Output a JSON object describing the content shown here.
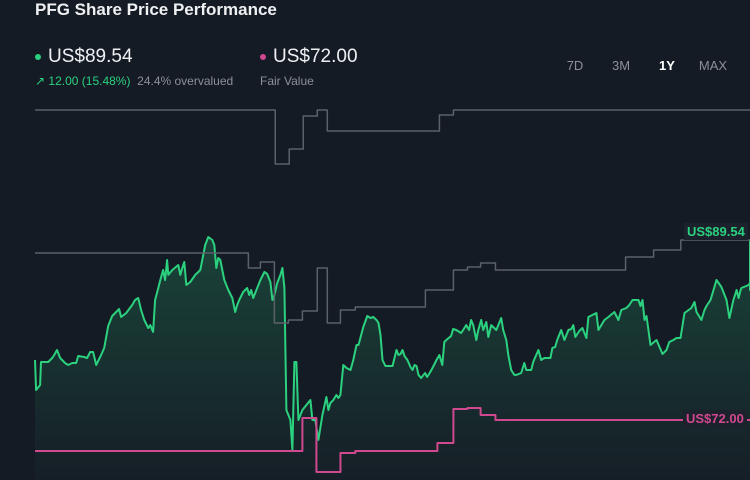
{
  "header": {
    "title": "PFG Share Price Performance"
  },
  "price": {
    "value": "US$89.54",
    "change": "12.00 (15.48%)",
    "valuation": "24.4% overvalued",
    "color": "#2bd17e",
    "change_icon": "arrow-up-right-icon"
  },
  "fair_value": {
    "value": "US$72.00",
    "label": "Fair Value",
    "color": "#d0488f"
  },
  "tabs": [
    {
      "label": "7D"
    },
    {
      "label": "3M"
    },
    {
      "label": "1Y",
      "active": true
    },
    {
      "label": "MAX"
    }
  ],
  "chart_data": {
    "type": "line",
    "title": "",
    "xlabel": "",
    "ylabel": "",
    "grid": false,
    "end_labels": {
      "price": "US$89.54",
      "fair_value": "US$72.00"
    },
    "series": [
      {
        "role": "price",
        "color": "#2bd17e",
        "points": [
          [
            0,
            77.86
          ],
          [
            0.4,
            74.93
          ],
          [
            1.8,
            75.42
          ],
          [
            2.1,
            77.66
          ],
          [
            4.6,
            77.66
          ],
          [
            6.0,
            78.05
          ],
          [
            6.7,
            78.34
          ],
          [
            7.7,
            78.83
          ],
          [
            8.8,
            78.05
          ],
          [
            10.5,
            77.56
          ],
          [
            11.6,
            77.37
          ],
          [
            13.0,
            77.56
          ],
          [
            14.4,
            77.56
          ],
          [
            15.1,
            78.25
          ],
          [
            17.2,
            78.15
          ],
          [
            18.2,
            78.05
          ],
          [
            19.3,
            78.64
          ],
          [
            20.3,
            78.64
          ],
          [
            21.4,
            77.37
          ],
          [
            23.1,
            78.34
          ],
          [
            24.2,
            79.03
          ],
          [
            25.6,
            81.17
          ],
          [
            27.0,
            82.14
          ],
          [
            29.4,
            82.82
          ],
          [
            30.1,
            82.04
          ],
          [
            31.9,
            82.43
          ],
          [
            34.0,
            83.21
          ],
          [
            35.0,
            83.7
          ],
          [
            36.1,
            83.89
          ],
          [
            37.1,
            82.73
          ],
          [
            38.2,
            81.75
          ],
          [
            39.6,
            80.97
          ],
          [
            40.3,
            81.26
          ],
          [
            41.3,
            80.58
          ],
          [
            42.0,
            83.7
          ],
          [
            43.1,
            84.87
          ],
          [
            43.8,
            85.65
          ],
          [
            44.8,
            86.62
          ],
          [
            45.5,
            85.65
          ],
          [
            46.2,
            87.6
          ],
          [
            46.6,
            86.14
          ],
          [
            48.0,
            86.62
          ],
          [
            50.1,
            87.11
          ],
          [
            50.8,
            86.14
          ],
          [
            51.5,
            86.82
          ],
          [
            52.2,
            87.4
          ],
          [
            52.9,
            85.16
          ],
          [
            54.3,
            85.45
          ],
          [
            56.0,
            86.14
          ],
          [
            57.1,
            86.43
          ],
          [
            57.8,
            86.62
          ],
          [
            59.5,
            89.06
          ],
          [
            60.6,
            89.84
          ],
          [
            62.0,
            89.54
          ],
          [
            62.7,
            89.06
          ],
          [
            63.4,
            86.82
          ],
          [
            64.1,
            87.79
          ],
          [
            64.8,
            87.6
          ],
          [
            65.5,
            86.62
          ],
          [
            66.2,
            85.65
          ],
          [
            67.6,
            84.67
          ],
          [
            69.0,
            83.89
          ],
          [
            70.0,
            82.53
          ],
          [
            70.7,
            83.21
          ],
          [
            71.4,
            83.7
          ],
          [
            72.8,
            84.48
          ],
          [
            74.2,
            84.87
          ],
          [
            74.9,
            84.19
          ],
          [
            75.6,
            84.67
          ],
          [
            76.3,
            83.89
          ],
          [
            77.4,
            84.67
          ],
          [
            78.8,
            85.65
          ],
          [
            80.2,
            86.43
          ],
          [
            81.2,
            86.23
          ],
          [
            82.3,
            85.45
          ],
          [
            83.0,
            83.7
          ],
          [
            83.7,
            84.19
          ],
          [
            84.7,
            85.36
          ],
          [
            85.8,
            86.14
          ],
          [
            86.5,
            86.82
          ],
          [
            87.2,
            84.87
          ],
          [
            87.9,
            72.99
          ],
          [
            89.3,
            72.01
          ],
          [
            90.0,
            69.09
          ],
          [
            90.7,
            77.66
          ],
          [
            91.4,
            77.66
          ],
          [
            92.1,
            72.01
          ],
          [
            93.5,
            72.99
          ],
          [
            94.9,
            73.47
          ],
          [
            96.3,
            73.96
          ],
          [
            97.0,
            72.01
          ],
          [
            98.0,
            72.01
          ],
          [
            99.1,
            70.07
          ],
          [
            100.5,
            72.5
          ],
          [
            101.9,
            74.25
          ],
          [
            102.6,
            72.99
          ],
          [
            103.3,
            73.67
          ],
          [
            104.3,
            73.96
          ],
          [
            105.4,
            74.45
          ],
          [
            106.1,
            74.15
          ],
          [
            106.8,
            74.45
          ],
          [
            107.8,
            77.37
          ],
          [
            108.9,
            77.08
          ],
          [
            110.3,
            76.88
          ],
          [
            111.3,
            77.86
          ],
          [
            112.4,
            79.32
          ],
          [
            113.1,
            79.32
          ],
          [
            114.8,
            81.07
          ],
          [
            116.2,
            82.14
          ],
          [
            117.3,
            81.95
          ],
          [
            118.3,
            82.04
          ],
          [
            119.4,
            81.75
          ],
          [
            120.1,
            81.46
          ],
          [
            120.8,
            80.29
          ],
          [
            121.5,
            77.86
          ],
          [
            122.5,
            77.27
          ],
          [
            125.0,
            77.27
          ],
          [
            126.4,
            78.83
          ],
          [
            127.1,
            78.34
          ],
          [
            127.8,
            78.44
          ],
          [
            128.5,
            78.83
          ],
          [
            129.2,
            78.25
          ],
          [
            130.2,
            77.86
          ],
          [
            131.3,
            77.17
          ],
          [
            132.0,
            76.88
          ],
          [
            132.7,
            77.37
          ],
          [
            133.4,
            77.27
          ],
          [
            134.1,
            76.4
          ],
          [
            135.0,
            76.1
          ],
          [
            136.4,
            76.59
          ],
          [
            137.1,
            76.2
          ],
          [
            137.8,
            76.49
          ],
          [
            139.0,
            77.08
          ],
          [
            140.4,
            77.86
          ],
          [
            141.4,
            78.34
          ],
          [
            142.4,
            77.37
          ],
          [
            143.1,
            79.61
          ],
          [
            143.8,
            79.8
          ],
          [
            145.5,
            80.19
          ],
          [
            146.2,
            80.88
          ],
          [
            147.3,
            80.78
          ],
          [
            149.0,
            80.49
          ],
          [
            150.8,
            81.26
          ],
          [
            151.8,
            80.78
          ],
          [
            152.5,
            81.75
          ],
          [
            153.2,
            81.26
          ],
          [
            154.3,
            79.8
          ],
          [
            155.0,
            80.78
          ],
          [
            156.0,
            81.75
          ],
          [
            156.7,
            80.78
          ],
          [
            157.8,
            81.56
          ],
          [
            158.5,
            80.1
          ],
          [
            159.5,
            81.26
          ],
          [
            161.3,
            80.78
          ],
          [
            163.0,
            81.95
          ],
          [
            163.7,
            80.78
          ],
          [
            164.8,
            79.8
          ],
          [
            165.5,
            78.34
          ],
          [
            166.5,
            76.88
          ],
          [
            167.6,
            76.4
          ],
          [
            168.3,
            76.4
          ],
          [
            170.0,
            76.59
          ],
          [
            171.1,
            77.56
          ],
          [
            171.8,
            76.88
          ],
          [
            173.5,
            76.88
          ],
          [
            174.2,
            77.66
          ],
          [
            176.0,
            78.83
          ],
          [
            177.0,
            77.86
          ],
          [
            178.1,
            78.05
          ],
          [
            180.2,
            78.05
          ],
          [
            180.9,
            79.03
          ],
          [
            181.9,
            79.12
          ],
          [
            182.6,
            79.8
          ],
          [
            184.0,
            80.78
          ],
          [
            185.1,
            79.8
          ],
          [
            186.5,
            80.78
          ],
          [
            187.5,
            80.88
          ],
          [
            188.2,
            81.26
          ],
          [
            188.9,
            80.1
          ],
          [
            190.3,
            80.68
          ],
          [
            191.4,
            80.97
          ],
          [
            192.8,
            80.0
          ],
          [
            193.5,
            82.04
          ],
          [
            196.3,
            82.43
          ],
          [
            197.0,
            80.78
          ],
          [
            199.1,
            81.75
          ],
          [
            200.5,
            82.04
          ],
          [
            202.6,
            82.53
          ],
          [
            204.0,
            81.75
          ],
          [
            205.0,
            82.73
          ],
          [
            206.8,
            82.92
          ],
          [
            207.8,
            83.21
          ],
          [
            208.9,
            83.7
          ],
          [
            211.0,
            83.7
          ],
          [
            211.7,
            83.12
          ],
          [
            212.4,
            83.7
          ],
          [
            213.1,
            81.75
          ],
          [
            213.8,
            82.14
          ],
          [
            215.2,
            79.32
          ],
          [
            217.3,
            79.8
          ],
          [
            219.4,
            78.44
          ],
          [
            220.8,
            78.83
          ],
          [
            221.8,
            79.61
          ],
          [
            223.2,
            79.8
          ],
          [
            224.3,
            80.0
          ],
          [
            225.7,
            80.0
          ],
          [
            227.1,
            82.43
          ],
          [
            229.5,
            82.92
          ],
          [
            230.6,
            83.51
          ],
          [
            231.3,
            82.53
          ],
          [
            233.0,
            81.75
          ],
          [
            234.1,
            82.73
          ],
          [
            234.8,
            83.12
          ],
          [
            236.2,
            83.7
          ],
          [
            238.3,
            85.65
          ],
          [
            240.0,
            84.97
          ],
          [
            241.8,
            83.7
          ],
          [
            242.8,
            81.95
          ],
          [
            244.2,
            83.7
          ],
          [
            245.3,
            84.67
          ],
          [
            246.0,
            83.89
          ],
          [
            246.7,
            84.67
          ],
          [
            247.0,
            84.87
          ],
          [
            249.5,
            85.16
          ],
          [
            251.2,
            85.36
          ],
          [
            253.0,
            85.16
          ],
          [
            254.0,
            84.97
          ],
          [
            255.0,
            84.67
          ],
          [
            255.1,
            86.62
          ],
          [
            255.8,
            86.82
          ],
          [
            256.5,
            88.09
          ],
          [
            257.5,
            88.28
          ],
          [
            258.6,
            89.06
          ],
          [
            259.3,
            89.54
          ]
        ]
      },
      {
        "role": "upper_step",
        "color": "#5b616b",
        "points": [
          [
            0,
            102.21
          ],
          [
            84.0,
            96.95
          ],
          [
            88.9,
            98.41
          ],
          [
            93.8,
            101.62
          ],
          [
            98.7,
            102.21
          ],
          [
            102.2,
            100.16
          ],
          [
            141.4,
            101.72
          ],
          [
            146.3,
            102.21
          ],
          [
            259.3,
            102.21
          ]
        ]
      },
      {
        "role": "middle_step",
        "color": "#5b616b",
        "points": [
          [
            0,
            88.28
          ],
          [
            74.6,
            86.82
          ],
          [
            78.8,
            87.4
          ],
          [
            83.7,
            81.46
          ],
          [
            88.6,
            81.75
          ],
          [
            93.5,
            82.63
          ],
          [
            98.7,
            86.82
          ],
          [
            102.2,
            81.46
          ],
          [
            106.8,
            82.73
          ],
          [
            112.0,
            83.02
          ],
          [
            136.5,
            84.67
          ],
          [
            146.3,
            86.62
          ],
          [
            151.2,
            86.91
          ],
          [
            155.8,
            87.3
          ],
          [
            161.0,
            86.62
          ],
          [
            206.5,
            87.89
          ],
          [
            216.3,
            88.57
          ],
          [
            225.8,
            89.54
          ],
          [
            259.3,
            89.54
          ]
        ]
      },
      {
        "role": "fair_value",
        "color": "#d0488f",
        "points": [
          [
            0,
            68.99
          ],
          [
            93.5,
            72.21
          ],
          [
            98.4,
            66.95
          ],
          [
            106.8,
            68.8
          ],
          [
            112.0,
            68.99
          ],
          [
            140.7,
            69.77
          ],
          [
            146.3,
            73.08
          ],
          [
            151.2,
            73.18
          ],
          [
            155.8,
            72.5
          ],
          [
            161.0,
            72.01
          ],
          [
            259.3,
            72.01
          ]
        ]
      }
    ]
  }
}
